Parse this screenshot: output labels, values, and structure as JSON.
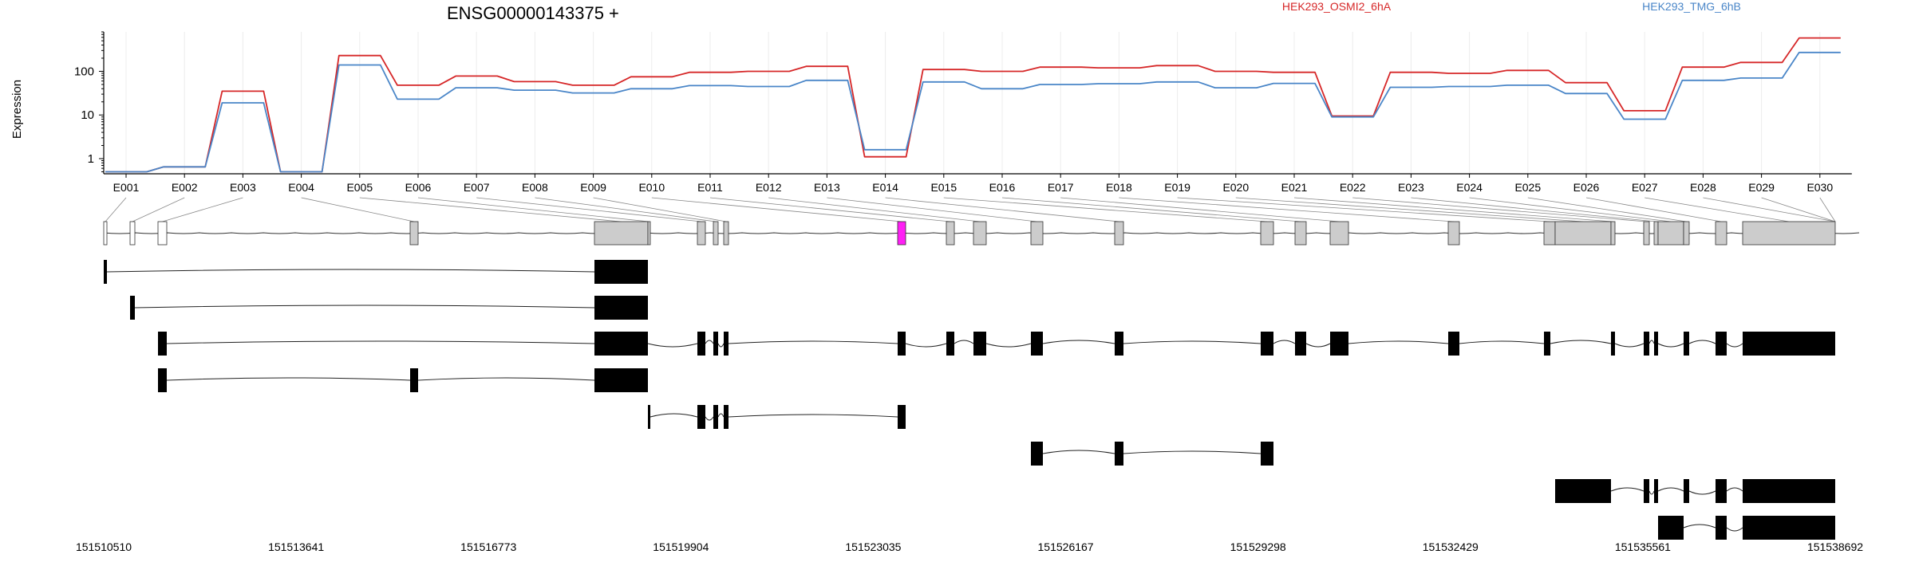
{
  "chart_data": {
    "type": "line",
    "title": "ENSG00000143375 +",
    "ylabel": "Expression",
    "yscale": "log",
    "yticks": [
      1,
      10,
      100
    ],
    "grid": true,
    "legend_placement": "top",
    "exons": [
      "E001",
      "E002",
      "E003",
      "E004",
      "E005",
      "E006",
      "E007",
      "E008",
      "E009",
      "E010",
      "E011",
      "E012",
      "E013",
      "E014",
      "E015",
      "E016",
      "E017",
      "E018",
      "E019",
      "E020",
      "E021",
      "E022",
      "E023",
      "E024",
      "E025",
      "E026",
      "E027",
      "E028",
      "E029",
      "E030"
    ],
    "series": [
      {
        "name": "HEK293_OSMI2_6hA",
        "color": "#d62728",
        "values": [
          0.5,
          0.65,
          35,
          0.5,
          230,
          48,
          78,
          58,
          48,
          75,
          95,
          100,
          130,
          1.1,
          110,
          100,
          125,
          120,
          135,
          100,
          95,
          9.5,
          95,
          90,
          105,
          55,
          12.5,
          125,
          160,
          580
        ]
      },
      {
        "name": "HEK293_TMG_6hB",
        "color": "#4a86c8",
        "values": [
          0.5,
          0.65,
          19,
          0.5,
          140,
          23,
          42,
          37,
          32,
          40,
          47,
          45,
          62,
          1.6,
          57,
          40,
          50,
          52,
          57,
          42,
          53,
          9,
          43,
          45,
          48,
          31,
          8,
          62,
          70,
          270
        ]
      }
    ],
    "exon_span_highlight": "E010",
    "highlight_color": "#ff1ff5",
    "genomic_axis": {
      "ticks": [
        "151510510",
        "151513641",
        "151516773",
        "151519904",
        "151523035",
        "151526167",
        "151529298",
        "151532429",
        "151535561",
        "151538692"
      ]
    }
  }
}
